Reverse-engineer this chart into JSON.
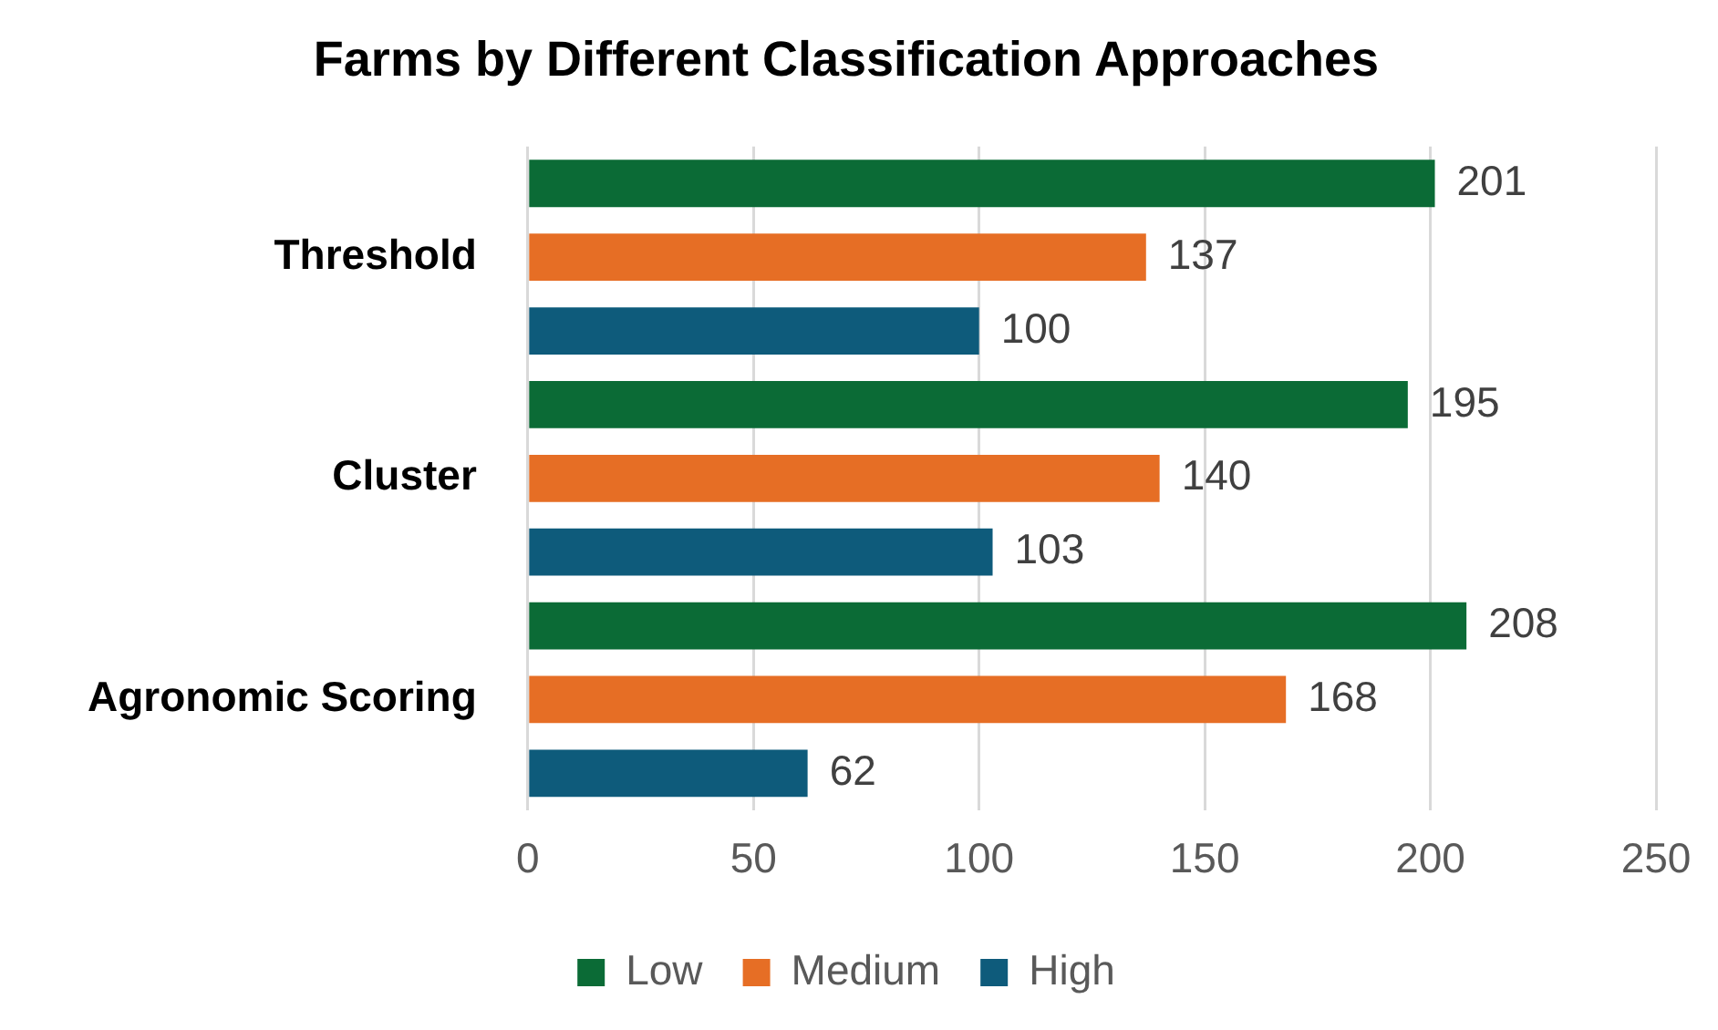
{
  "chart_data": {
    "type": "bar",
    "orientation": "horizontal",
    "title": "Farms by Different Classification Approaches",
    "categories": [
      "Threshold",
      "Cluster",
      "Agronomic Scoring"
    ],
    "series": [
      {
        "name": "Low",
        "color": "#0b6b36",
        "values": [
          201,
          195,
          208
        ]
      },
      {
        "name": "Medium",
        "color": "#e66e25",
        "values": [
          137,
          140,
          168
        ]
      },
      {
        "name": "High",
        "color": "#0e5b7b",
        "values": [
          100,
          103,
          62
        ]
      }
    ],
    "xlim": [
      0,
      250
    ],
    "xticks": [
      0,
      50,
      100,
      150,
      200,
      250
    ],
    "grid": "x",
    "legend": "bottom",
    "data_labels": true
  }
}
